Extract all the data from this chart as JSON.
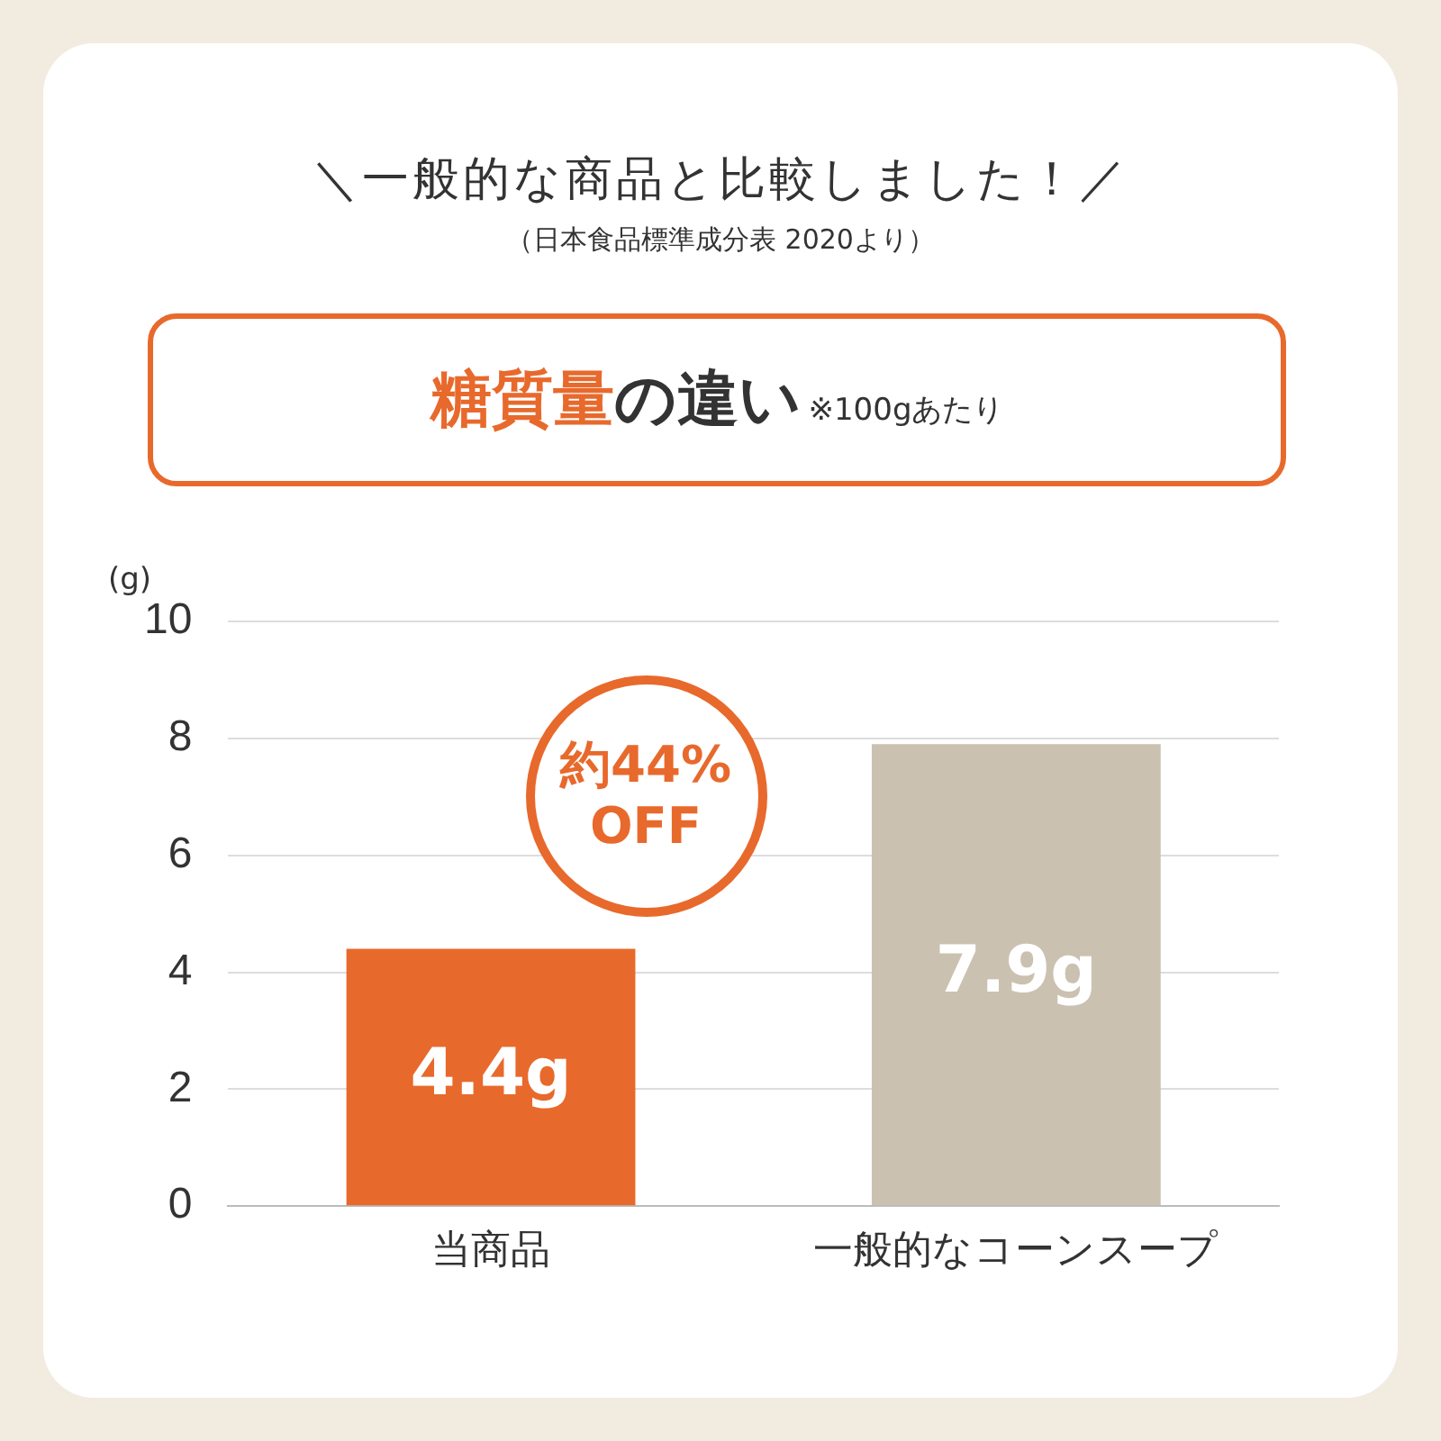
{
  "chart_data": {
    "type": "bar",
    "title": "糖質量の違い",
    "subtitle": "＼一般的な商品と比較しました！／",
    "annotations": [
      "（日本食品標準成分表 2020より）",
      "※100gあたり",
      {
        "text": "約44% OFF",
        "x": "当商品",
        "y": 4.4
      }
    ],
    "ylabel": "(g)",
    "categories": [
      "当商品",
      "一般的なコーンスープ"
    ],
    "values": [
      4.4,
      7.9
    ],
    "colors": [
      "#e8692c",
      "#cbc1b1"
    ],
    "value_labels": [
      "4.4g",
      "7.9g"
    ],
    "ylim": [
      0,
      10
    ],
    "yticks": [
      0,
      2,
      4,
      6,
      8,
      10
    ],
    "grid": "y",
    "legend": false
  }
}
